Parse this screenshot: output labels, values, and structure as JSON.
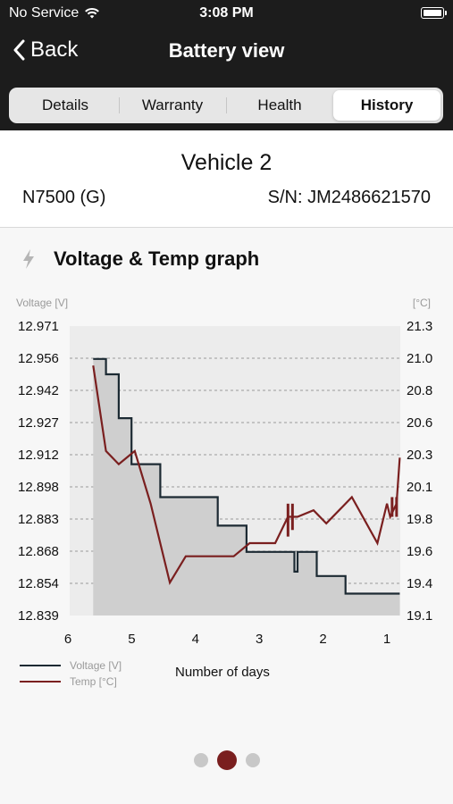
{
  "status_bar": {
    "carrier": "No Service",
    "time": "3:08 PM"
  },
  "nav": {
    "back_label": "Back",
    "title": "Battery view"
  },
  "tabs": [
    {
      "label": "Details",
      "active": false
    },
    {
      "label": "Warranty",
      "active": false
    },
    {
      "label": "Health",
      "active": false
    },
    {
      "label": "History",
      "active": true
    }
  ],
  "vehicle": {
    "name": "Vehicle 2",
    "model": "N7500 (G)",
    "serial": "S/N: JM2486621570"
  },
  "graph": {
    "title": "Voltage & Temp graph",
    "icon": "lightning-icon"
  },
  "pager": {
    "pages": 3,
    "active": 1
  },
  "colors": {
    "voltage": "#1c2a33",
    "temp": "#7a1f1f",
    "fill": "#cfcfcf",
    "plot_bg": "#ececec",
    "accent_dot": "#7a1f1f"
  },
  "chart_data": {
    "type": "line",
    "xlabel": "Number of days",
    "x_ticks": [
      "6",
      "5",
      "4",
      "3",
      "2",
      "1"
    ],
    "x_range": [
      6,
      1
    ],
    "y_left": {
      "label": "Voltage [V]",
      "ticks": [
        "12.971",
        "12.956",
        "12.942",
        "12.927",
        "12.912",
        "12.898",
        "12.883",
        "12.868",
        "12.854",
        "12.839"
      ],
      "range": [
        12.839,
        12.971
      ]
    },
    "y_right": {
      "label": "[°C]",
      "ticks": [
        "21.3",
        "21.0",
        "20.8",
        "20.6",
        "20.3",
        "20.1",
        "19.8",
        "19.6",
        "19.4",
        "19.1"
      ],
      "range": [
        19.1,
        21.3
      ]
    },
    "grid": true,
    "series": [
      {
        "name": "Voltage [V]",
        "axis": "left",
        "step": true,
        "filled": true,
        "points": [
          [
            5.8,
            12.956
          ],
          [
            5.6,
            12.956
          ],
          [
            5.6,
            12.949
          ],
          [
            5.4,
            12.949
          ],
          [
            5.4,
            12.929
          ],
          [
            5.2,
            12.929
          ],
          [
            5.2,
            12.908
          ],
          [
            4.75,
            12.908
          ],
          [
            4.75,
            12.893
          ],
          [
            3.85,
            12.893
          ],
          [
            3.85,
            12.88
          ],
          [
            3.4,
            12.88
          ],
          [
            3.4,
            12.868
          ],
          [
            2.65,
            12.868
          ],
          [
            2.65,
            12.859
          ],
          [
            2.6,
            12.859
          ],
          [
            2.6,
            12.868
          ],
          [
            2.3,
            12.868
          ],
          [
            2.3,
            12.857
          ],
          [
            1.85,
            12.857
          ],
          [
            1.85,
            12.849
          ],
          [
            1.2,
            12.849
          ],
          [
            1.0,
            12.849
          ]
        ]
      },
      {
        "name": "Temp [°C]",
        "axis": "right",
        "step": false,
        "points": [
          [
            5.8,
            21.0
          ],
          [
            5.6,
            20.35
          ],
          [
            5.4,
            20.25
          ],
          [
            5.15,
            20.35
          ],
          [
            4.9,
            19.95
          ],
          [
            4.6,
            19.35
          ],
          [
            4.35,
            19.55
          ],
          [
            3.6,
            19.55
          ],
          [
            3.35,
            19.65
          ],
          [
            2.95,
            19.65
          ],
          [
            2.75,
            19.85
          ],
          [
            2.6,
            19.85
          ],
          [
            2.35,
            19.9
          ],
          [
            2.15,
            19.8
          ],
          [
            1.75,
            20.0
          ],
          [
            1.35,
            19.65
          ],
          [
            1.2,
            19.95
          ],
          [
            1.15,
            19.85
          ],
          [
            1.05,
            19.95
          ],
          [
            1.0,
            20.3
          ]
        ]
      }
    ]
  }
}
